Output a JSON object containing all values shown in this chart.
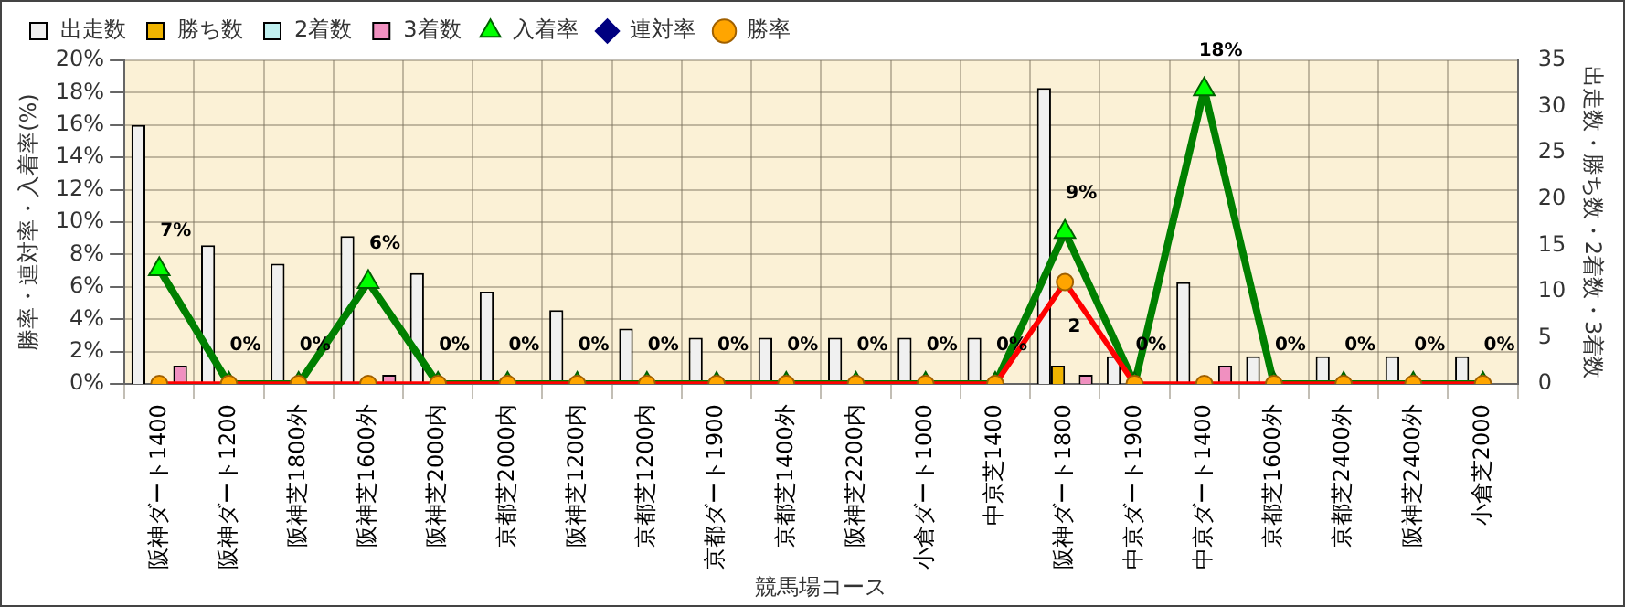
{
  "chart_data": {
    "type": "bar",
    "xlabel": "競馬場コース",
    "ylabel": "勝率・連対率・入着率(%)",
    "y2label": "出走数・勝ち数・2着数・3着数",
    "categories": [
      "阪神ダート1400",
      "阪神ダート1200",
      "阪神芝1800外",
      "阪神芝1600外",
      "阪神芝2000内",
      "京都芝2000内",
      "阪神芝1200内",
      "京都芝1200内",
      "京都ダート1900",
      "京都芝1400外",
      "阪神芝2200内",
      "小倉ダート1000",
      "中京芝1400",
      "阪神ダート1800",
      "中京ダート1900",
      "中京ダート1400",
      "京都芝1600外",
      "京都芝2400外",
      "阪神芝2400外",
      "小倉芝2000"
    ],
    "series": [
      {
        "name": "出走数",
        "axis": "y2",
        "color": "#f0f0f0",
        "values": [
          28,
          15,
          13,
          16,
          12,
          10,
          8,
          6,
          5,
          5,
          5,
          5,
          5,
          32,
          3,
          11,
          3,
          3,
          3,
          3
        ]
      },
      {
        "name": "勝ち数",
        "axis": "y2",
        "color": "#f0b400",
        "values": [
          0,
          0,
          0,
          0,
          0,
          0,
          0,
          0,
          0,
          0,
          0,
          0,
          0,
          2,
          0,
          0,
          0,
          0,
          0,
          0
        ],
        "value_labels": [
          null,
          null,
          null,
          null,
          null,
          null,
          null,
          null,
          null,
          null,
          null,
          null,
          null,
          "2",
          null,
          null,
          null,
          null,
          null,
          null
        ]
      },
      {
        "name": "2着数",
        "axis": "y2",
        "color": "#c0f0f0",
        "values": [
          0,
          0,
          0,
          0,
          0,
          0,
          0,
          0,
          0,
          0,
          0,
          0,
          0,
          0,
          0,
          0,
          0,
          0,
          0,
          0
        ]
      },
      {
        "name": "3着数",
        "axis": "y2",
        "color": "#f090c0",
        "values": [
          2,
          0,
          0,
          1,
          0,
          0,
          0,
          0,
          0,
          0,
          0,
          0,
          0,
          1,
          0,
          2,
          0,
          0,
          0,
          0
        ]
      },
      {
        "name": "入着率",
        "type": "line",
        "marker": "triangle",
        "color": "#008000",
        "values": [
          7.1,
          0,
          0,
          6.3,
          0,
          0,
          0,
          0,
          0,
          0,
          0,
          0,
          0,
          9.4,
          0,
          18.2,
          0,
          0,
          0,
          0
        ],
        "value_labels": [
          "7%",
          "0%",
          "0%",
          "6%",
          "0%",
          "0%",
          "0%",
          "0%",
          "0%",
          "0%",
          "0%",
          "0%",
          "0%",
          "9%",
          "0%",
          "18%",
          "0%",
          "0%",
          "0%",
          "0%"
        ]
      },
      {
        "name": "連対率",
        "type": "line",
        "marker": "diamond",
        "color": "#000080",
        "values": [
          null,
          null,
          null,
          null,
          null,
          null,
          null,
          null,
          null,
          null,
          null,
          null,
          null,
          null,
          null,
          null,
          null,
          null,
          null,
          null
        ]
      },
      {
        "name": "勝率",
        "type": "line",
        "marker": "circle",
        "color": "#ff0000",
        "values": [
          0,
          0,
          0,
          0,
          0,
          0,
          0,
          0,
          0,
          0,
          0,
          0,
          0,
          6.3,
          0,
          0,
          0,
          0,
          0,
          0
        ]
      }
    ],
    "ylim": [
      0,
      20
    ],
    "yticks": [
      {
        "value": 0,
        "label": "0%"
      },
      {
        "value": 2,
        "label": "2%"
      },
      {
        "value": 4,
        "label": "4%"
      },
      {
        "value": 6,
        "label": "6%"
      },
      {
        "value": 8,
        "label": "8%"
      },
      {
        "value": 10,
        "label": "10%"
      },
      {
        "value": 12,
        "label": "12%"
      },
      {
        "value": 14,
        "label": "14%"
      },
      {
        "value": 16,
        "label": "16%"
      },
      {
        "value": 18,
        "label": "18%"
      },
      {
        "value": 20,
        "label": "20%"
      }
    ],
    "y2lim": [
      0,
      35
    ],
    "y2ticks": [
      0,
      5,
      10,
      15,
      20,
      25,
      30,
      35
    ],
    "grid": true,
    "legend": "top"
  }
}
